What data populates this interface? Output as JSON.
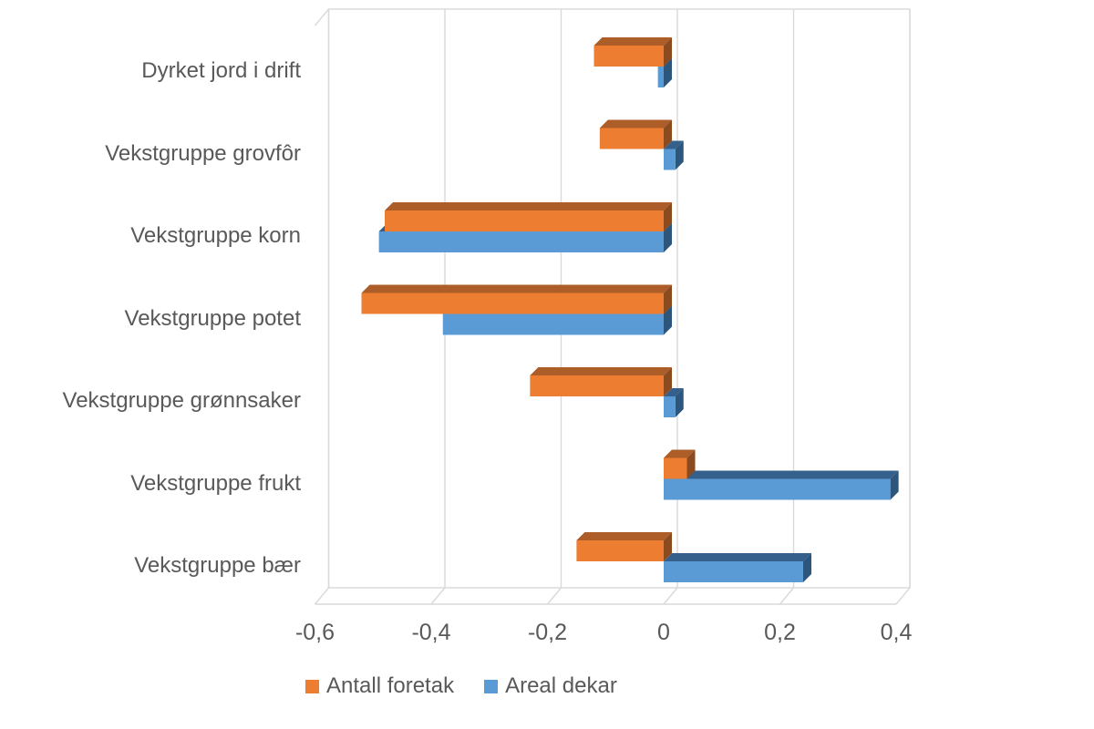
{
  "chart_data": {
    "type": "bar",
    "orientation": "horizontal",
    "style": "3d",
    "title": "",
    "categories": [
      "Dyrket jord i drift",
      "Vekstgruppe grovfôr",
      "Vekstgruppe korn",
      "Vekstgruppe potet",
      "Vekstgruppe grønnsaker",
      "Vekstgruppe frukt",
      "Vekstgruppe bær"
    ],
    "series": [
      {
        "name": "Antall foretak",
        "color": "#ED7D31",
        "color_top": "#AC5D28",
        "color_side": "#8C4A1F",
        "values": [
          -0.12,
          -0.11,
          -0.48,
          -0.52,
          -0.23,
          0.04,
          -0.15
        ]
      },
      {
        "name": "Areal dekar",
        "color": "#5B9BD5",
        "color_top": "#35608B",
        "color_side": "#2D567C",
        "values": [
          -0.01,
          0.02,
          -0.49,
          -0.38,
          0.02,
          0.39,
          0.24
        ]
      }
    ],
    "x_axis": {
      "min": -0.6,
      "max": 0.4,
      "tick_labels": [
        "-0,6",
        "-0,4",
        "-0,2",
        "0",
        "0,2",
        "0,4"
      ],
      "tick_values": [
        -0.6,
        -0.4,
        -0.2,
        0,
        0.2,
        0.4
      ]
    },
    "grid": true,
    "legend_position": "bottom",
    "colors": {
      "gridline": "#D9D9D9",
      "text": "#595959",
      "background": "#FFFFFF"
    }
  }
}
